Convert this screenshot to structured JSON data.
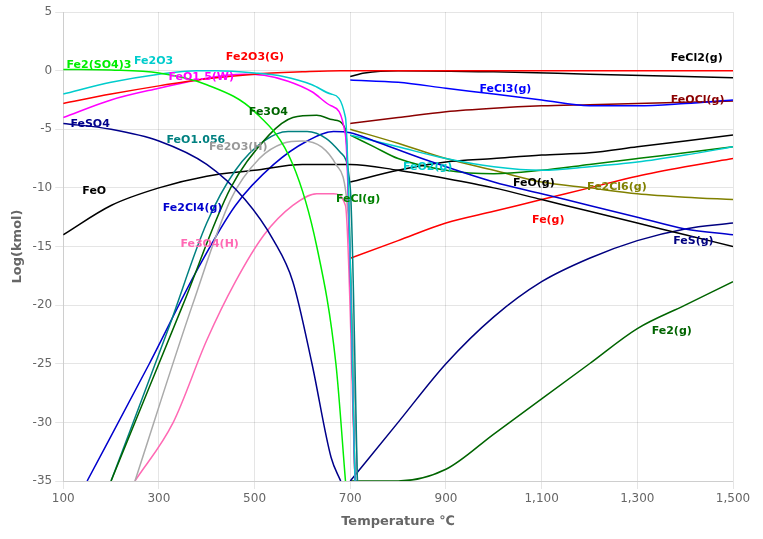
{
  "chart_data": {
    "type": "line",
    "xlabel": "Temperature ℃",
    "ylabel": "Log(kmol)",
    "xlim": [
      100,
      1500
    ],
    "ylim": [
      -35,
      5
    ],
    "xticks": [
      100,
      300,
      500,
      700,
      900,
      1100,
      1300,
      1500
    ],
    "yticks": [
      5,
      0,
      -5,
      -10,
      -15,
      -20,
      -25,
      -30,
      -35
    ],
    "grid": true,
    "series": [
      {
        "name": "Fe2(SO4)3",
        "color": "#00EE00",
        "x": [
          100,
          200,
          300,
          400,
          500,
          580,
          630,
          670,
          690
        ],
        "values": [
          0.1,
          0.05,
          -0.2,
          -1.2,
          -3.5,
          -8,
          -15,
          -25,
          -35
        ]
      },
      {
        "name": "Fe2O3",
        "color": "#00CCCC",
        "x": [
          100,
          200,
          300,
          380,
          420,
          500,
          560,
          620,
          660,
          690,
          710
        ],
        "values": [
          -2.0,
          -1.0,
          -0.3,
          0.0,
          0.0,
          -0.2,
          -0.5,
          -1.2,
          -2.0,
          -4.0,
          -35
        ]
      },
      {
        "name": "Fe2O3(G)",
        "color": "#FF0000",
        "x": [
          100,
          200,
          300,
          400,
          500,
          600,
          680,
          720,
          900,
          1100,
          1300,
          1500
        ],
        "values": [
          -2.8,
          -2.0,
          -1.3,
          -0.7,
          -0.3,
          -0.1,
          0.0,
          0.0,
          0.0,
          0.0,
          0.0,
          0.0
        ]
      },
      {
        "name": "FeO1.5(W)",
        "color": "#FF00FF",
        "x": [
          100,
          200,
          300,
          380,
          440,
          480,
          520,
          570,
          620,
          660,
          690,
          710
        ],
        "values": [
          -4.0,
          -2.5,
          -1.5,
          -0.8,
          -0.4,
          -0.3,
          -0.4,
          -0.9,
          -1.8,
          -3.0,
          -5.5,
          -35
        ]
      },
      {
        "name": "Fe3O4",
        "color": "#006400",
        "x": [
          200,
          350,
          450,
          530,
          580,
          630,
          665,
          690,
          710
        ],
        "values": [
          -35,
          -20,
          -10,
          -5.5,
          -4.0,
          -3.8,
          -4.2,
          -5.0,
          -35
        ]
      },
      {
        "name": "FeSO4",
        "color": "#00008B",
        "x": [
          100,
          200,
          300,
          400,
          480,
          540,
          580,
          620,
          660,
          680
        ],
        "values": [
          -4.5,
          -5.0,
          -6.0,
          -8.0,
          -11.0,
          -14.5,
          -18,
          -25,
          -33,
          -35
        ]
      },
      {
        "name": "FeO1.056",
        "color": "#008080",
        "x": [
          200,
          320,
          400,
          460,
          520,
          570,
          610,
          650,
          680,
          700,
          715
        ],
        "values": [
          -35,
          -22,
          -13,
          -8.5,
          -6.0,
          -5.2,
          -5.2,
          -5.8,
          -7.0,
          -10,
          -35
        ]
      },
      {
        "name": "Fe2O3(H)",
        "color": "#AAAAAA",
        "x": [
          250,
          370,
          450,
          510,
          560,
          600,
          640,
          670,
          695,
          715
        ],
        "values": [
          -35,
          -20,
          -11,
          -7.5,
          -6.2,
          -6.0,
          -6.5,
          -8.0,
          -12,
          -35
        ]
      },
      {
        "name": "FeO",
        "color": "#000000",
        "x": [
          100,
          200,
          300,
          400,
          500,
          600,
          700,
          800,
          900,
          1000,
          1100,
          1200,
          1300,
          1400,
          1500
        ],
        "values": [
          -14,
          -11.5,
          -10.0,
          -9.0,
          -8.5,
          -8.0,
          -8.0,
          -8.5,
          -9.2,
          -10.0,
          -11.0,
          -12.0,
          -13.0,
          -14.0,
          -15.0
        ]
      },
      {
        "name": "Fe2Cl4(g)",
        "color": "#0000CD",
        "x": [
          150,
          280,
          380,
          460,
          540,
          610,
          665,
          700,
          750,
          850,
          1000,
          1100,
          1200,
          1300,
          1400,
          1500
        ],
        "values": [
          -35,
          -25,
          -17,
          -11.5,
          -8.0,
          -6.0,
          -5.2,
          -5.3,
          -6.0,
          -7.5,
          -9.5,
          -10.5,
          -11.5,
          -12.5,
          -13.5,
          -14.0
        ]
      },
      {
        "name": "Fe3O4(H)",
        "color": "#FF69B4",
        "x": [
          250,
          330,
          400,
          460,
          520,
          580,
          630,
          665,
          690,
          710
        ],
        "values": [
          -35,
          -30,
          -23,
          -18,
          -14,
          -11.5,
          -10.5,
          -10.5,
          -11.5,
          -35
        ]
      },
      {
        "name": "FeCl2(g)",
        "color": "#000000",
        "x": [
          700,
          730,
          800,
          1000,
          1200,
          1400,
          1500
        ],
        "values": [
          -0.5,
          -0.2,
          0.0,
          -0.1,
          -0.3,
          -0.5,
          -0.6
        ]
      },
      {
        "name": "FeCl3(g)",
        "color": "#0000FF",
        "x": [
          700,
          800,
          900,
          1000,
          1100,
          1200,
          1300,
          1400,
          1500
        ],
        "values": [
          -0.8,
          -1.0,
          -1.5,
          -2.0,
          -2.5,
          -3.0,
          -3.0,
          -2.8,
          -2.5
        ]
      },
      {
        "name": "FeOCl(g)",
        "color": "#8B0000",
        "x": [
          700,
          800,
          900,
          1000,
          1100,
          1200,
          1300,
          1400,
          1500
        ],
        "values": [
          -4.5,
          -4.0,
          -3.5,
          -3.2,
          -3.0,
          -2.9,
          -2.8,
          -2.7,
          -2.6
        ]
      },
      {
        "name": "FeO2(g)",
        "color": "#00CCCC",
        "x": [
          700,
          800,
          900,
          1000,
          1100,
          1200,
          1300,
          1400,
          1500
        ],
        "values": [
          -5.5,
          -6.5,
          -7.5,
          -8.2,
          -8.5,
          -8.2,
          -7.8,
          -7.2,
          -6.5
        ]
      },
      {
        "name": "FeO(g)",
        "color": "#000000",
        "x": [
          700,
          800,
          900,
          1000,
          1100,
          1200,
          1300,
          1400,
          1500
        ],
        "values": [
          -9.5,
          -8.5,
          -7.8,
          -7.5,
          -7.2,
          -7.0,
          -6.5,
          -6.0,
          -5.5
        ]
      },
      {
        "name": "FeCl(g)",
        "color": "#008000",
        "x": [
          700,
          750,
          800,
          900,
          1000,
          1100,
          1200,
          1300,
          1400,
          1500
        ],
        "values": [
          -5.5,
          -6.5,
          -7.5,
          -8.5,
          -8.8,
          -8.5,
          -8.0,
          -7.5,
          -7.0,
          -6.5
        ]
      },
      {
        "name": "Fe2Cl6(g)",
        "color": "#808000",
        "x": [
          700,
          800,
          900,
          1000,
          1100,
          1200,
          1300,
          1400,
          1500
        ],
        "values": [
          -5.0,
          -6.2,
          -7.5,
          -8.5,
          -9.5,
          -10.0,
          -10.5,
          -10.8,
          -11.0
        ]
      },
      {
        "name": "Fe(g)",
        "color": "#FF0000",
        "x": [
          700,
          800,
          900,
          1000,
          1100,
          1200,
          1300,
          1400,
          1500
        ],
        "values": [
          -16,
          -14.5,
          -13.0,
          -12.0,
          -11.0,
          -10.0,
          -9.0,
          -8.2,
          -7.5
        ]
      },
      {
        "name": "FeS(g)",
        "color": "#000080",
        "x": [
          700,
          800,
          900,
          1000,
          1100,
          1200,
          1300,
          1400,
          1500
        ],
        "values": [
          -35,
          -30,
          -25,
          -21,
          -18,
          -16,
          -14.5,
          -13.5,
          -13.0
        ]
      },
      {
        "name": "Fe2(g)",
        "color": "#006400",
        "x": [
          700,
          800,
          900,
          1000,
          1100,
          1200,
          1300,
          1400,
          1500
        ],
        "values": [
          -35,
          -35,
          -34,
          -31,
          -28,
          -25,
          -22,
          -20,
          -18
        ]
      }
    ],
    "annotations": [
      {
        "text": "Fe2(SO4)3",
        "x": 107,
        "y": 0.2,
        "color": "#00EE00"
      },
      {
        "text": "Fe2O3",
        "x": 248,
        "y": 0.6,
        "color": "#00CCCC"
      },
      {
        "text": "Fe2O3(G)",
        "x": 440,
        "y": 0.9,
        "color": "#FF0000"
      },
      {
        "text": "FeO1.5(W)",
        "x": 320,
        "y": -0.8,
        "color": "#FF00FF"
      },
      {
        "text": "Fe3O4",
        "x": 488,
        "y": -3.8,
        "color": "#006400"
      },
      {
        "text": "FeSO4",
        "x": 115,
        "y": -4.8,
        "color": "#00008B"
      },
      {
        "text": "FeO1.056",
        "x": 316,
        "y": -6.2,
        "color": "#008080"
      },
      {
        "text": "Fe2O3(H)",
        "x": 405,
        "y": -6.8,
        "color": "#999999"
      },
      {
        "text": "FeO",
        "x": 140,
        "y": -10.5,
        "color": "#000000"
      },
      {
        "text": "Fe2Cl4(g)",
        "x": 308,
        "y": -12.0,
        "color": "#0000CD"
      },
      {
        "text": "Fe3O4(H)",
        "x": 345,
        "y": -15.0,
        "color": "#FF69B4"
      },
      {
        "text": "FeCl2(g)",
        "x": 1370,
        "y": 0.8,
        "color": "#000000"
      },
      {
        "text": "FeCl3(g)",
        "x": 970,
        "y": -1.8,
        "color": "#0000FF"
      },
      {
        "text": "FeOCl(g)",
        "x": 1370,
        "y": -2.8,
        "color": "#8B0000"
      },
      {
        "text": "FeO2(g)",
        "x": 810,
        "y": -8.5,
        "color": "#00CCCC"
      },
      {
        "text": "FeO(g)",
        "x": 1040,
        "y": -9.8,
        "color": "#000000"
      },
      {
        "text": "FeCl(g)",
        "x": 670,
        "y": -11.2,
        "color": "#008000"
      },
      {
        "text": "Fe2Cl6(g)",
        "x": 1195,
        "y": -10.2,
        "color": "#808000"
      },
      {
        "text": "Fe(g)",
        "x": 1080,
        "y": -13.0,
        "color": "#FF0000"
      },
      {
        "text": "FeS(g)",
        "x": 1375,
        "y": -14.8,
        "color": "#000080"
      },
      {
        "text": "Fe2(g)",
        "x": 1330,
        "y": -22.5,
        "color": "#006400"
      }
    ]
  }
}
